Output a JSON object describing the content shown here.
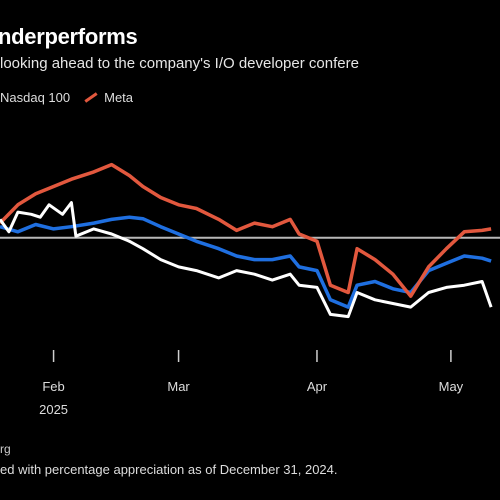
{
  "header": {
    "title": "nderperforms",
    "subtitle": "looking ahead to the company's I/O developer confere"
  },
  "footer": {
    "source": "rg",
    "note": "ed with percentage appreciation as of December 31, 2024."
  },
  "chart_data": {
    "type": "line",
    "title": "nderperforms",
    "subtitle": "looking ahead to the company's I/O developer confere",
    "x_ticks": [
      "Feb",
      "Mar",
      "Apr",
      "May"
    ],
    "x_tick_sublabels": [
      "2025",
      "",
      "",
      ""
    ],
    "x_tick_dates": [
      "2025-02-01",
      "2025-03-01",
      "2025-04-01",
      "2025-05-01"
    ],
    "baseline": 0,
    "grid": false,
    "legend_position": "top-left",
    "ylim": [
      -14,
      12
    ],
    "series": [
      {
        "name": "",
        "color": "#ffffff",
        "points": [
          [
            "2025-01-20",
            2.5
          ],
          [
            "2025-01-22",
            0.8
          ],
          [
            "2025-01-24",
            3.5
          ],
          [
            "2025-01-27",
            3.2
          ],
          [
            "2025-01-29",
            2.8
          ],
          [
            "2025-01-31",
            4.5
          ],
          [
            "2025-02-03",
            3.2
          ],
          [
            "2025-02-05",
            4.8
          ],
          [
            "2025-02-06",
            0.2
          ],
          [
            "2025-02-10",
            1.2
          ],
          [
            "2025-02-14",
            0.5
          ],
          [
            "2025-02-18",
            -0.5
          ],
          [
            "2025-02-21",
            -1.5
          ],
          [
            "2025-02-25",
            -3.0
          ],
          [
            "2025-03-01",
            -4.0
          ],
          [
            "2025-03-05",
            -4.5
          ],
          [
            "2025-03-10",
            -5.5
          ],
          [
            "2025-03-14",
            -4.5
          ],
          [
            "2025-03-18",
            -5.0
          ],
          [
            "2025-03-22",
            -5.8
          ],
          [
            "2025-03-26",
            -5.0
          ],
          [
            "2025-03-28",
            -6.5
          ],
          [
            "2025-04-01",
            -6.8
          ],
          [
            "2025-04-04",
            -10.5
          ],
          [
            "2025-04-08",
            -10.8
          ],
          [
            "2025-04-10",
            -7.5
          ],
          [
            "2025-04-14",
            -8.5
          ],
          [
            "2025-04-18",
            -9.0
          ],
          [
            "2025-04-22",
            -9.5
          ],
          [
            "2025-04-26",
            -7.5
          ],
          [
            "2025-04-30",
            -6.8
          ],
          [
            "2025-05-04",
            -6.5
          ],
          [
            "2025-05-08",
            -6.0
          ],
          [
            "2025-05-10",
            -9.5
          ]
        ]
      },
      {
        "name": "Nasdaq 100",
        "color": "#1f6fe0",
        "points": [
          [
            "2025-01-20",
            1.5
          ],
          [
            "2025-01-24",
            0.8
          ],
          [
            "2025-01-28",
            1.8
          ],
          [
            "2025-02-01",
            1.2
          ],
          [
            "2025-02-05",
            1.5
          ],
          [
            "2025-02-10",
            2.0
          ],
          [
            "2025-02-14",
            2.5
          ],
          [
            "2025-02-18",
            2.8
          ],
          [
            "2025-02-21",
            2.6
          ],
          [
            "2025-02-25",
            1.5
          ],
          [
            "2025-03-01",
            0.5
          ],
          [
            "2025-03-05",
            -0.5
          ],
          [
            "2025-03-10",
            -1.5
          ],
          [
            "2025-03-14",
            -2.5
          ],
          [
            "2025-03-18",
            -3.0
          ],
          [
            "2025-03-22",
            -3.0
          ],
          [
            "2025-03-26",
            -2.5
          ],
          [
            "2025-03-28",
            -4.0
          ],
          [
            "2025-04-01",
            -4.5
          ],
          [
            "2025-04-04",
            -8.5
          ],
          [
            "2025-04-08",
            -9.5
          ],
          [
            "2025-04-10",
            -6.5
          ],
          [
            "2025-04-14",
            -6.0
          ],
          [
            "2025-04-18",
            -7.0
          ],
          [
            "2025-04-22",
            -7.5
          ],
          [
            "2025-04-26",
            -4.5
          ],
          [
            "2025-04-30",
            -3.5
          ],
          [
            "2025-05-04",
            -2.5
          ],
          [
            "2025-05-08",
            -2.8
          ],
          [
            "2025-05-10",
            -3.2
          ]
        ]
      },
      {
        "name": "Meta",
        "color": "#e2583e",
        "points": [
          [
            "2025-01-20",
            2.0
          ],
          [
            "2025-01-24",
            4.5
          ],
          [
            "2025-01-28",
            6.0
          ],
          [
            "2025-02-01",
            7.0
          ],
          [
            "2025-02-05",
            8.0
          ],
          [
            "2025-02-10",
            9.0
          ],
          [
            "2025-02-14",
            10.0
          ],
          [
            "2025-02-18",
            8.5
          ],
          [
            "2025-02-21",
            7.0
          ],
          [
            "2025-02-25",
            5.5
          ],
          [
            "2025-03-01",
            4.5
          ],
          [
            "2025-03-05",
            4.0
          ],
          [
            "2025-03-10",
            2.5
          ],
          [
            "2025-03-14",
            1.0
          ],
          [
            "2025-03-18",
            2.0
          ],
          [
            "2025-03-22",
            1.5
          ],
          [
            "2025-03-26",
            2.5
          ],
          [
            "2025-03-28",
            0.5
          ],
          [
            "2025-04-01",
            -0.5
          ],
          [
            "2025-04-04",
            -6.5
          ],
          [
            "2025-04-08",
            -7.5
          ],
          [
            "2025-04-10",
            -1.5
          ],
          [
            "2025-04-14",
            -3.0
          ],
          [
            "2025-04-18",
            -5.0
          ],
          [
            "2025-04-22",
            -8.0
          ],
          [
            "2025-04-26",
            -4.0
          ],
          [
            "2025-04-30",
            -1.5
          ],
          [
            "2025-05-04",
            0.8
          ],
          [
            "2025-05-08",
            1.0
          ],
          [
            "2025-05-10",
            1.2
          ]
        ]
      }
    ]
  }
}
